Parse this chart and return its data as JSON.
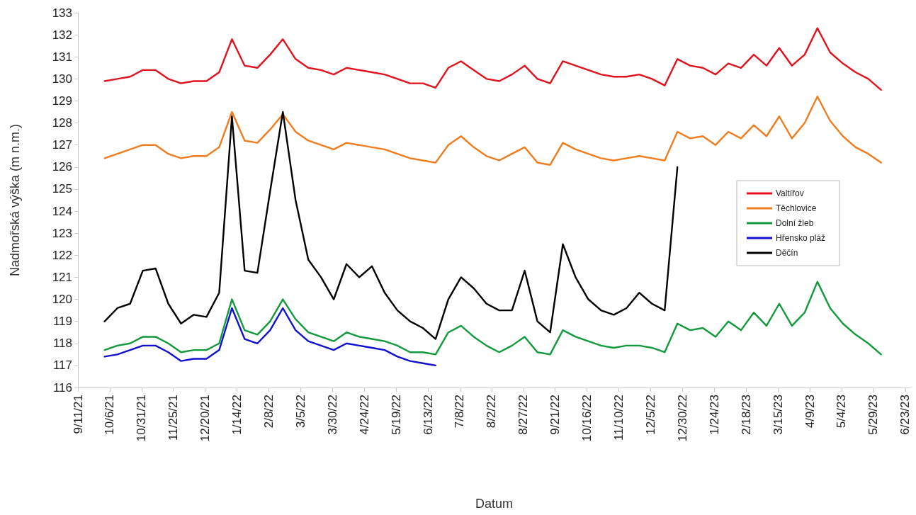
{
  "chart_data": {
    "type": "line",
    "xlabel": "Datum",
    "ylabel": "Nadmořská výška (m n.m.)",
    "x": [
      "2021-10-02",
      "2021-10-12",
      "2021-10-22",
      "2021-11-01",
      "2021-11-11",
      "2021-11-21",
      "2021-12-01",
      "2021-12-11",
      "2021-12-21",
      "2021-12-31",
      "2022-01-10",
      "2022-01-20",
      "2022-01-30",
      "2022-02-09",
      "2022-02-19",
      "2022-03-01",
      "2022-03-11",
      "2022-03-21",
      "2022-03-31",
      "2022-04-10",
      "2022-04-20",
      "2022-04-30",
      "2022-05-10",
      "2022-05-20",
      "2022-05-30",
      "2022-06-09",
      "2022-06-19",
      "2022-06-29",
      "2022-07-09",
      "2022-07-19",
      "2022-07-29",
      "2022-08-08",
      "2022-08-18",
      "2022-08-28",
      "2022-09-07",
      "2022-09-17",
      "2022-09-27",
      "2022-10-07",
      "2022-10-17",
      "2022-10-27",
      "2022-11-06",
      "2022-11-16",
      "2022-11-26",
      "2022-12-06",
      "2022-12-16",
      "2022-12-26",
      "2023-01-05",
      "2023-01-15",
      "2023-01-25",
      "2023-02-04",
      "2023-02-14",
      "2023-02-24",
      "2023-03-06",
      "2023-03-16",
      "2023-03-26",
      "2023-04-05",
      "2023-04-15",
      "2023-04-25",
      "2023-05-05",
      "2023-05-15",
      "2023-05-25",
      "2023-06-04"
    ],
    "series": [
      {
        "name": "Valtířov",
        "color": "#e3111b",
        "values": [
          129.9,
          130.0,
          130.1,
          130.4,
          130.4,
          130.0,
          129.8,
          129.9,
          129.9,
          130.3,
          131.8,
          130.6,
          130.5,
          131.1,
          131.8,
          130.9,
          130.5,
          130.4,
          130.2,
          130.5,
          130.4,
          130.3,
          130.2,
          130.0,
          129.8,
          129.8,
          129.6,
          130.5,
          130.8,
          130.4,
          130.0,
          129.9,
          130.2,
          130.6,
          130.0,
          129.8,
          130.8,
          130.6,
          130.4,
          130.2,
          130.1,
          130.1,
          130.2,
          130.0,
          129.7,
          130.9,
          130.6,
          130.5,
          130.2,
          130.7,
          130.5,
          131.1,
          130.6,
          131.4,
          130.6,
          131.1,
          132.3,
          131.2,
          130.7,
          130.3,
          130.0,
          129.5
        ]
      },
      {
        "name": "Těchlovice",
        "color": "#f07c1e",
        "values": [
          126.4,
          126.6,
          126.8,
          127.0,
          127.0,
          126.6,
          126.4,
          126.5,
          126.5,
          126.9,
          128.5,
          127.2,
          127.1,
          127.7,
          128.4,
          127.6,
          127.2,
          127.0,
          126.8,
          127.1,
          127.0,
          126.9,
          126.8,
          126.6,
          126.4,
          126.3,
          126.2,
          127.0,
          127.4,
          126.9,
          126.5,
          126.3,
          126.6,
          126.9,
          126.2,
          126.1,
          127.1,
          126.8,
          126.6,
          126.4,
          126.3,
          126.4,
          126.5,
          126.4,
          126.3,
          127.6,
          127.3,
          127.4,
          127.0,
          127.6,
          127.3,
          127.9,
          127.4,
          128.3,
          127.3,
          128.0,
          129.2,
          128.1,
          127.4,
          126.9,
          126.6,
          126.2
        ]
      },
      {
        "name": "Dolní žleb",
        "color": "#119a3c",
        "values": [
          117.7,
          117.9,
          118.0,
          118.3,
          118.3,
          118.0,
          117.6,
          117.7,
          117.7,
          118.0,
          120.0,
          118.6,
          118.4,
          119.0,
          120.0,
          119.1,
          118.5,
          118.3,
          118.1,
          118.5,
          118.3,
          118.2,
          118.1,
          117.9,
          117.6,
          117.6,
          117.5,
          118.5,
          118.8,
          118.3,
          117.9,
          117.6,
          117.9,
          118.3,
          117.6,
          117.5,
          118.6,
          118.3,
          118.1,
          117.9,
          117.8,
          117.9,
          117.9,
          117.8,
          117.6,
          118.9,
          118.6,
          118.7,
          118.3,
          119.0,
          118.6,
          119.4,
          118.8,
          119.8,
          118.8,
          119.4,
          120.8,
          119.6,
          118.9,
          118.4,
          118.0,
          117.5
        ]
      },
      {
        "name": "Hřensko pláž",
        "color": "#1010d0",
        "values": [
          117.4,
          117.5,
          117.7,
          117.9,
          117.9,
          117.6,
          117.2,
          117.3,
          117.3,
          117.7,
          119.6,
          118.2,
          118.0,
          118.6,
          119.6,
          118.6,
          118.1,
          117.9,
          117.7,
          118.0,
          117.9,
          117.8,
          117.7,
          117.4,
          117.2,
          117.1,
          117.0,
          null,
          null,
          null,
          null,
          null,
          null,
          null,
          null,
          null,
          null,
          null,
          null,
          null,
          null,
          null,
          null,
          null,
          null,
          null,
          null,
          null,
          null,
          null,
          null,
          null,
          null,
          null,
          null,
          null,
          null,
          null,
          null,
          null,
          null,
          null
        ]
      },
      {
        "name": "Děčín",
        "color": "#000000",
        "values": [
          119.0,
          119.6,
          119.8,
          121.3,
          121.4,
          119.8,
          118.9,
          119.3,
          119.2,
          120.3,
          128.3,
          121.3,
          121.2,
          124.9,
          128.5,
          124.5,
          121.8,
          121.0,
          120.0,
          121.6,
          121.0,
          121.5,
          120.3,
          119.5,
          119.0,
          118.7,
          118.2,
          120.0,
          121.0,
          120.5,
          119.8,
          119.5,
          119.5,
          121.3,
          119.0,
          118.5,
          122.5,
          121.0,
          120.0,
          119.5,
          119.3,
          119.6,
          120.3,
          119.8,
          119.5,
          126.0,
          null,
          null,
          null,
          null,
          null,
          null,
          null,
          null,
          null,
          null,
          null,
          null,
          null,
          null,
          null,
          null
        ]
      }
    ],
    "xlim": [
      "2021-09-11",
      "2023-06-27"
    ],
    "xticks": [
      {
        "value": "2021-09-11",
        "label": "9/11/21"
      },
      {
        "value": "2021-10-06",
        "label": "10/6/21"
      },
      {
        "value": "2021-10-31",
        "label": "10/31/21"
      },
      {
        "value": "2021-11-25",
        "label": "11/25/21"
      },
      {
        "value": "2021-12-20",
        "label": "12/20/21"
      },
      {
        "value": "2022-01-14",
        "label": "1/14/22"
      },
      {
        "value": "2022-02-08",
        "label": "2/8/22"
      },
      {
        "value": "2022-03-05",
        "label": "3/5/22"
      },
      {
        "value": "2022-03-30",
        "label": "3/30/22"
      },
      {
        "value": "2022-04-24",
        "label": "4/24/22"
      },
      {
        "value": "2022-05-19",
        "label": "5/19/22"
      },
      {
        "value": "2022-06-13",
        "label": "6/13/22"
      },
      {
        "value": "2022-07-08",
        "label": "7/8/22"
      },
      {
        "value": "2022-08-02",
        "label": "8/2/22"
      },
      {
        "value": "2022-08-27",
        "label": "8/27/22"
      },
      {
        "value": "2022-09-21",
        "label": "9/21/22"
      },
      {
        "value": "2022-10-16",
        "label": "10/16/22"
      },
      {
        "value": "2022-11-10",
        "label": "11/10/22"
      },
      {
        "value": "2022-12-05",
        "label": "12/5/22"
      },
      {
        "value": "2022-12-30",
        "label": "12/30/22"
      },
      {
        "value": "2023-01-24",
        "label": "1/24/23"
      },
      {
        "value": "2023-02-18",
        "label": "2/18/23"
      },
      {
        "value": "2023-03-15",
        "label": "3/15/23"
      },
      {
        "value": "2023-04-09",
        "label": "4/9/23"
      },
      {
        "value": "2023-05-04",
        "label": "5/4/23"
      },
      {
        "value": "2023-05-29",
        "label": "5/29/23"
      },
      {
        "value": "2023-06-23",
        "label": "6/23/23"
      }
    ],
    "ylim": [
      116,
      133
    ],
    "yticks": [
      116,
      117,
      118,
      119,
      120,
      121,
      122,
      123,
      124,
      125,
      126,
      127,
      128,
      129,
      130,
      131,
      132,
      133
    ],
    "grid": false,
    "legend": "right",
    "marker": "none",
    "line_style": "solid"
  }
}
